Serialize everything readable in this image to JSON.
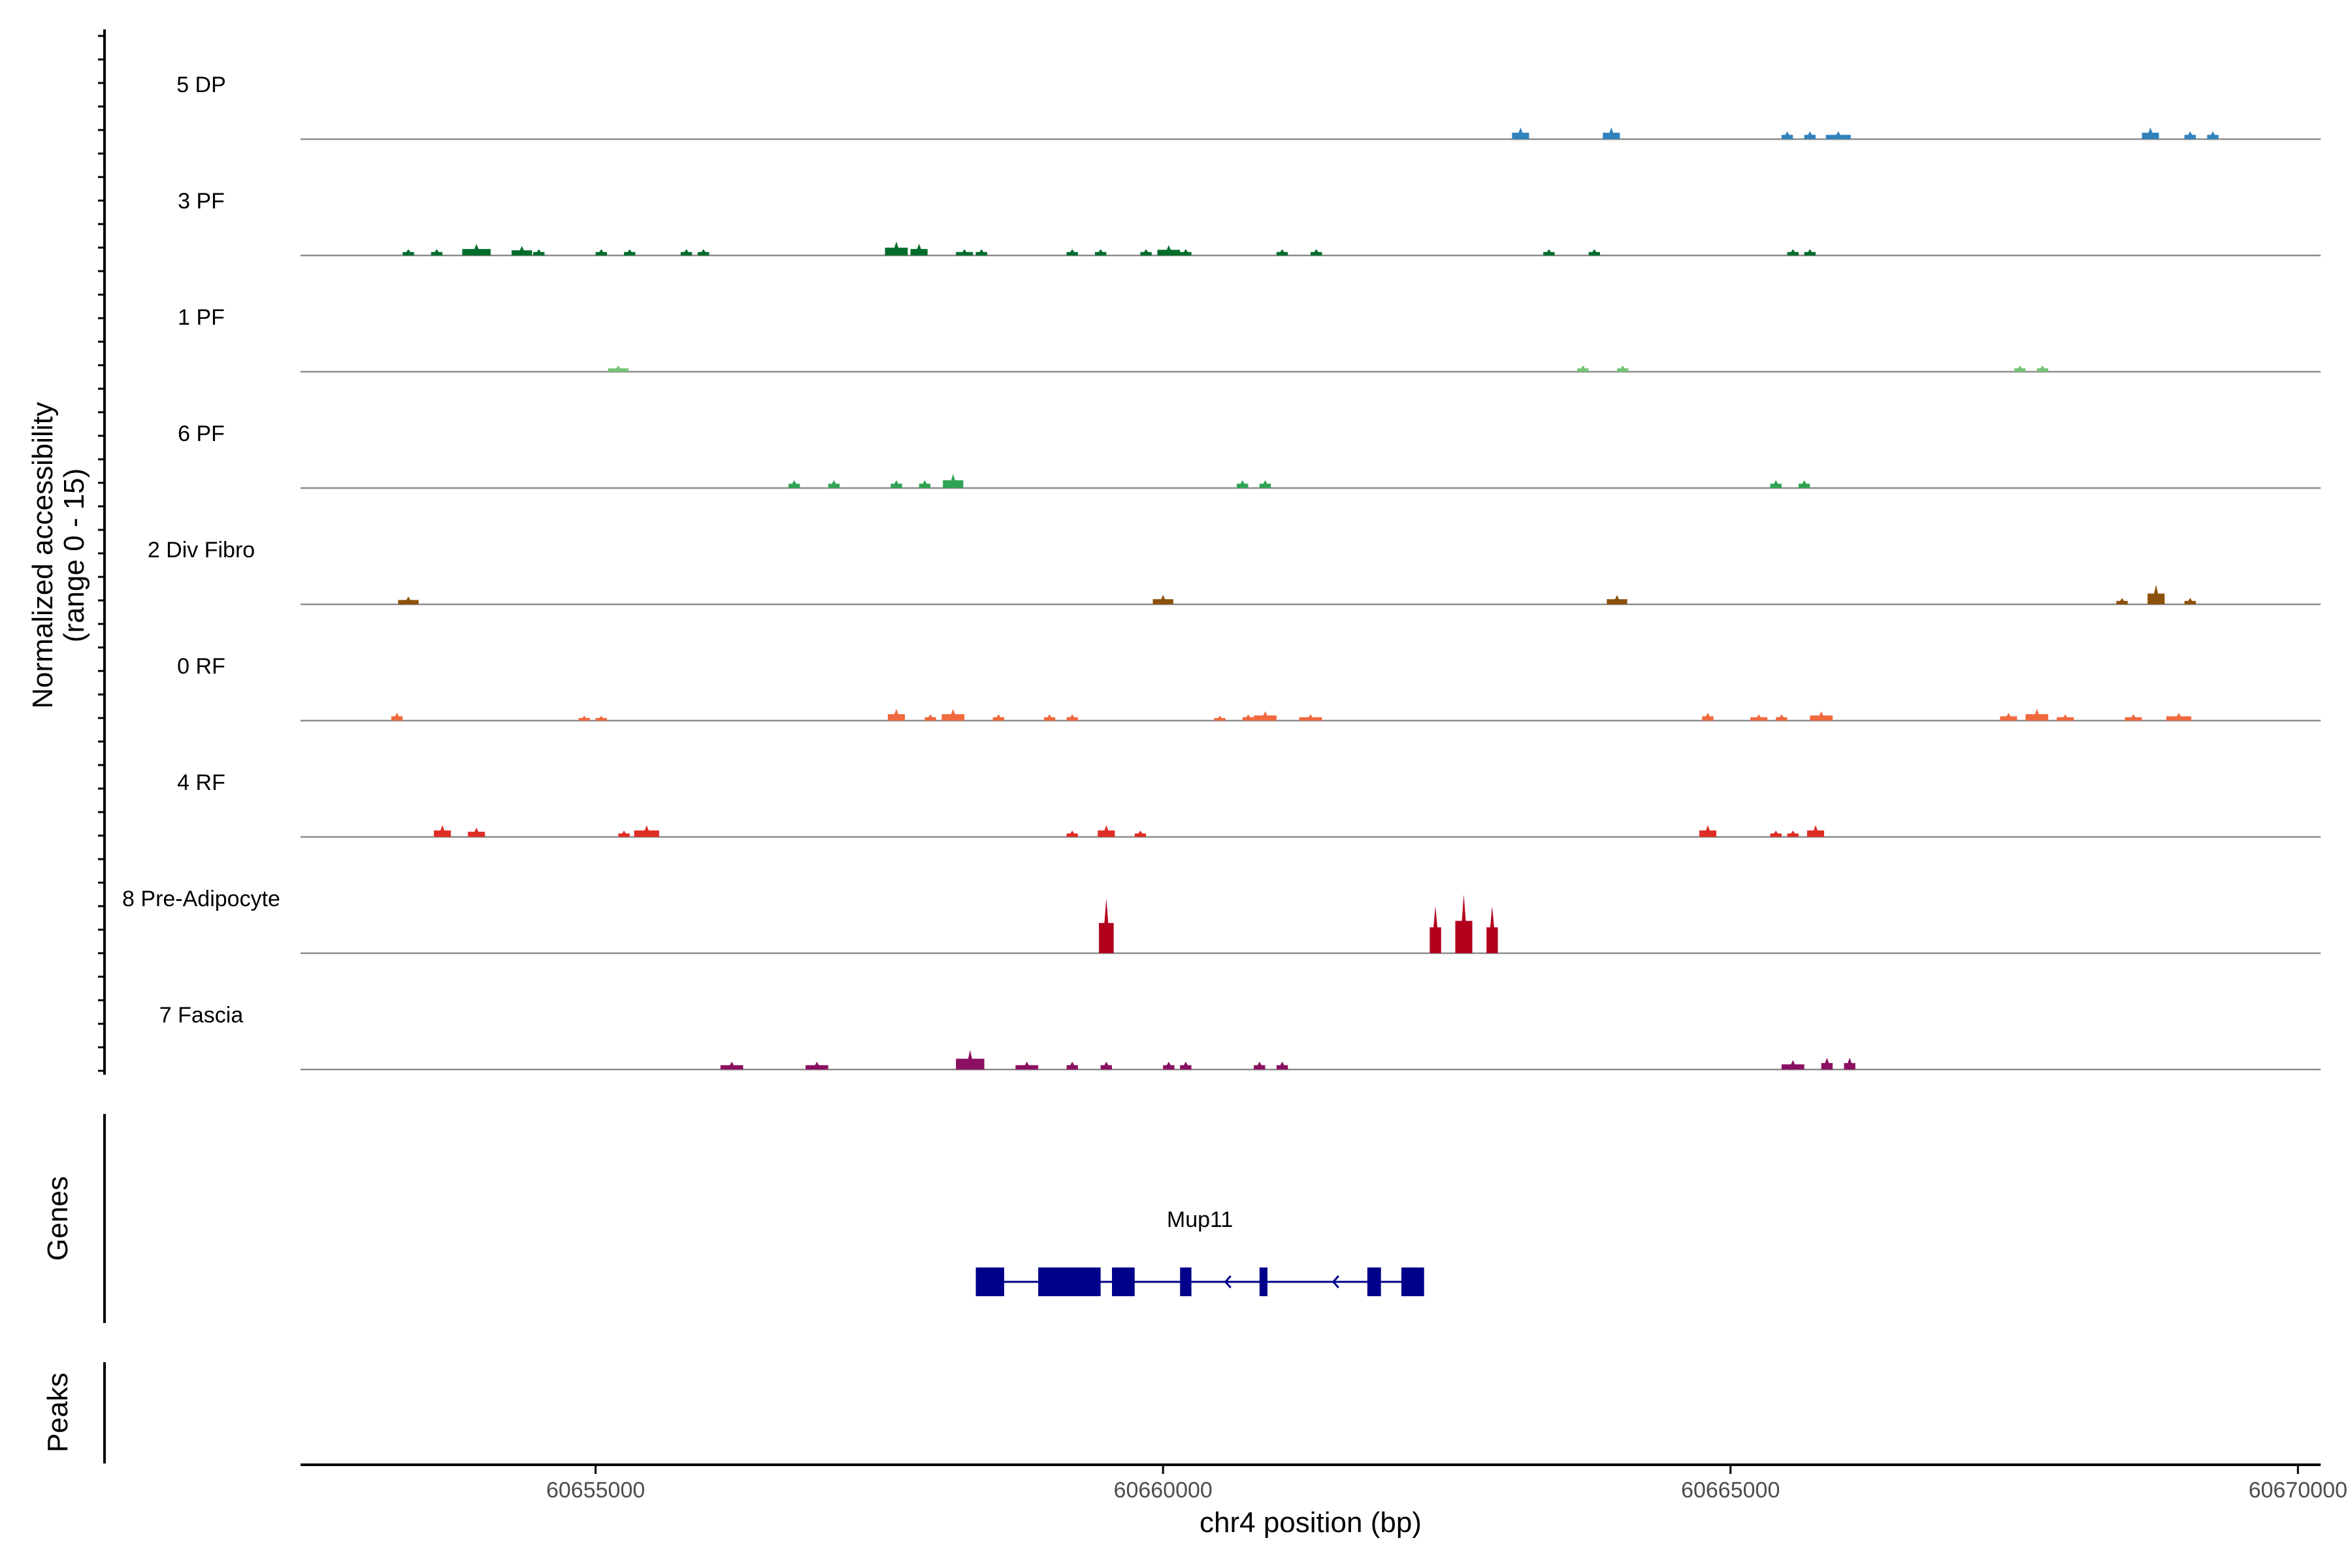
{
  "chart_data": {
    "type": "area",
    "title": "",
    "ylabel_line1": "Normalized accessibility",
    "ylabel_line2": "(range 0 - 15)",
    "ylim": [
      0,
      15
    ],
    "xlabel": "chr4 position (bp)",
    "xlim": [
      60652400,
      60670200
    ],
    "xticks": [
      60655000,
      60660000,
      60665000,
      60670000
    ],
    "xtick_labels": [
      "60655000",
      "60660000",
      "60665000",
      "60670000"
    ],
    "tracks": [
      {
        "name": "5 DP",
        "color": "#3182bd",
        "peaks": [
          [
            60663150,
            150,
            1.5
          ],
          [
            60663950,
            150,
            1.5
          ],
          [
            60665500,
            100,
            1.0
          ],
          [
            60665700,
            100,
            1.0
          ],
          [
            60665950,
            220,
            1.0
          ],
          [
            60668700,
            150,
            1.5
          ],
          [
            60669050,
            100,
            1.0
          ],
          [
            60669250,
            100,
            1.0
          ]
        ]
      },
      {
        "name": "3 PF",
        "color": "#006d2c",
        "peaks": [
          [
            60653350,
            100,
            0.8
          ],
          [
            60653600,
            100,
            0.8
          ],
          [
            60653950,
            250,
            1.5
          ],
          [
            60654350,
            180,
            1.2
          ],
          [
            60654500,
            100,
            0.8
          ],
          [
            60655050,
            100,
            0.8
          ],
          [
            60655300,
            100,
            0.8
          ],
          [
            60655800,
            100,
            0.8
          ],
          [
            60655950,
            100,
            0.8
          ],
          [
            60657650,
            200,
            1.8
          ],
          [
            60657850,
            150,
            1.5
          ],
          [
            60658250,
            150,
            0.8
          ],
          [
            60658400,
            100,
            0.8
          ],
          [
            60659200,
            100,
            0.8
          ],
          [
            60659450,
            100,
            0.8
          ],
          [
            60659850,
            100,
            0.8
          ],
          [
            60660050,
            200,
            1.3
          ],
          [
            60660200,
            100,
            0.8
          ],
          [
            60661050,
            100,
            0.8
          ],
          [
            60661350,
            100,
            0.8
          ],
          [
            60663400,
            100,
            0.8
          ],
          [
            60663800,
            100,
            0.8
          ],
          [
            60665550,
            100,
            0.8
          ],
          [
            60665700,
            100,
            0.8
          ]
        ]
      },
      {
        "name": "1 PF",
        "color": "#74c476",
        "peaks": [
          [
            60655200,
            180,
            0.8
          ],
          [
            60663700,
            100,
            0.8
          ],
          [
            60664050,
            100,
            0.8
          ],
          [
            60667550,
            100,
            0.8
          ],
          [
            60667750,
            100,
            0.8
          ]
        ]
      },
      {
        "name": "6 PF",
        "color": "#31a354",
        "peaks": [
          [
            60656750,
            100,
            1.0
          ],
          [
            60657100,
            100,
            1.0
          ],
          [
            60657650,
            100,
            1.0
          ],
          [
            60657900,
            100,
            1.0
          ],
          [
            60658150,
            180,
            1.8
          ],
          [
            60660700,
            100,
            1.0
          ],
          [
            60660900,
            100,
            1.0
          ],
          [
            60665400,
            100,
            1.0
          ],
          [
            60665650,
            100,
            1.0
          ]
        ]
      },
      {
        "name": "2 Div Fibro",
        "color": "#8c510a",
        "peaks": [
          [
            60653350,
            180,
            1.0
          ],
          [
            60660000,
            180,
            1.2
          ],
          [
            60664000,
            180,
            1.2
          ],
          [
            60668450,
            100,
            0.8
          ],
          [
            60668750,
            150,
            2.5
          ],
          [
            60669050,
            100,
            0.8
          ]
        ]
      },
      {
        "name": "0 RF",
        "color": "#f16a3f",
        "peaks": [
          [
            60653250,
            100,
            1.0
          ],
          [
            60654900,
            100,
            0.6
          ],
          [
            60655050,
            100,
            0.6
          ],
          [
            60657650,
            150,
            1.5
          ],
          [
            60657950,
            100,
            0.8
          ],
          [
            60658150,
            200,
            1.5
          ],
          [
            60658550,
            100,
            0.8
          ],
          [
            60659000,
            100,
            0.8
          ],
          [
            60659200,
            100,
            0.8
          ],
          [
            60660500,
            100,
            0.6
          ],
          [
            60660750,
            100,
            0.8
          ],
          [
            60660900,
            200,
            1.2
          ],
          [
            60661300,
            200,
            0.8
          ],
          [
            60664800,
            100,
            1.0
          ],
          [
            60665250,
            150,
            0.8
          ],
          [
            60665450,
            100,
            0.8
          ],
          [
            60665800,
            200,
            1.2
          ],
          [
            60667450,
            150,
            1.0
          ],
          [
            60667700,
            200,
            1.5
          ],
          [
            60667950,
            150,
            0.8
          ],
          [
            60668550,
            150,
            0.8
          ],
          [
            60668950,
            220,
            1.0
          ]
        ]
      },
      {
        "name": "4 RF",
        "color": "#de2d26",
        "peaks": [
          [
            60653650,
            150,
            1.5
          ],
          [
            60653950,
            150,
            1.2
          ],
          [
            60655250,
            100,
            0.8
          ],
          [
            60655450,
            220,
            1.5
          ],
          [
            60659200,
            100,
            0.8
          ],
          [
            60659500,
            150,
            1.5
          ],
          [
            60659800,
            100,
            0.8
          ],
          [
            60664800,
            150,
            1.5
          ],
          [
            60665400,
            100,
            0.8
          ],
          [
            60665550,
            100,
            0.8
          ],
          [
            60665750,
            150,
            1.5
          ]
        ]
      },
      {
        "name": "8 Pre-Adipocyte",
        "color": "#b2001d",
        "peaks": [
          [
            60659500,
            130,
            7.0
          ],
          [
            60662400,
            100,
            6.0
          ],
          [
            60662650,
            150,
            7.5
          ],
          [
            60662900,
            100,
            6.0
          ]
        ]
      },
      {
        "name": "7 Fascia",
        "color": "#8b1062",
        "peaks": [
          [
            60656200,
            200,
            1.0
          ],
          [
            60656950,
            200,
            1.0
          ],
          [
            60658300,
            250,
            2.5
          ],
          [
            60658800,
            200,
            1.0
          ],
          [
            60659200,
            100,
            1.0
          ],
          [
            60659500,
            100,
            1.0
          ],
          [
            60660050,
            100,
            1.0
          ],
          [
            60660200,
            100,
            1.0
          ],
          [
            60660850,
            100,
            1.0
          ],
          [
            60661050,
            100,
            1.0
          ],
          [
            60665550,
            200,
            1.2
          ],
          [
            60665850,
            100,
            1.5
          ],
          [
            60666050,
            100,
            1.5
          ]
        ]
      }
    ],
    "genes_panel_title": "Genes",
    "gene": {
      "name": "Mup11",
      "strand": "-",
      "start": 60658350,
      "end": 60662300,
      "color": "#00008b",
      "exons": [
        [
          60658350,
          60658600
        ],
        [
          60658900,
          60659450
        ],
        [
          60659550,
          60659750
        ],
        [
          60660150,
          60660250
        ],
        [
          60660850,
          60660920
        ],
        [
          60661800,
          60661920
        ],
        [
          60662100,
          60662300
        ]
      ]
    },
    "peaks_panel_title": "Peaks",
    "peaks_panel_values": [],
    "grid": false
  }
}
